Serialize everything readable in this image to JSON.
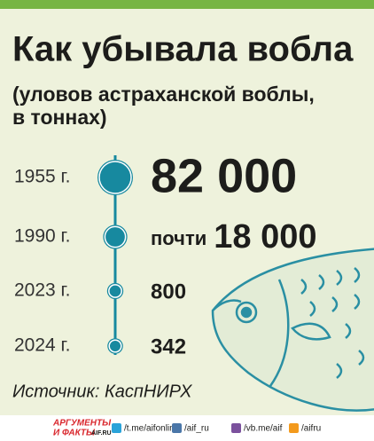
{
  "chart_data": {
    "type": "timeline",
    "title": "Как убывала вобла",
    "subtitle": [
      "(уловов астраханской воблы,",
      "в тоннах)"
    ],
    "categories": [
      "1955 г.",
      "1990 г.",
      "2023 г.",
      "2024 г."
    ],
    "values": [
      82000,
      18000,
      800,
      342
    ],
    "value_prefixes": [
      null,
      "почти",
      null,
      null
    ],
    "value_labels": [
      "82 000",
      "18 000",
      "800",
      "342"
    ],
    "color": "#17899f",
    "source": "Источник: КаспНИРХ"
  },
  "footer": {
    "logo_top": "АРГУМЕНТЫ",
    "logo_bottom": "И ФАКТЫ",
    "logo_site": "AIF.RU",
    "links": [
      "/t.me/aifonline",
      "/aif_ru",
      "/vb.me/aif",
      "/aifru"
    ]
  }
}
